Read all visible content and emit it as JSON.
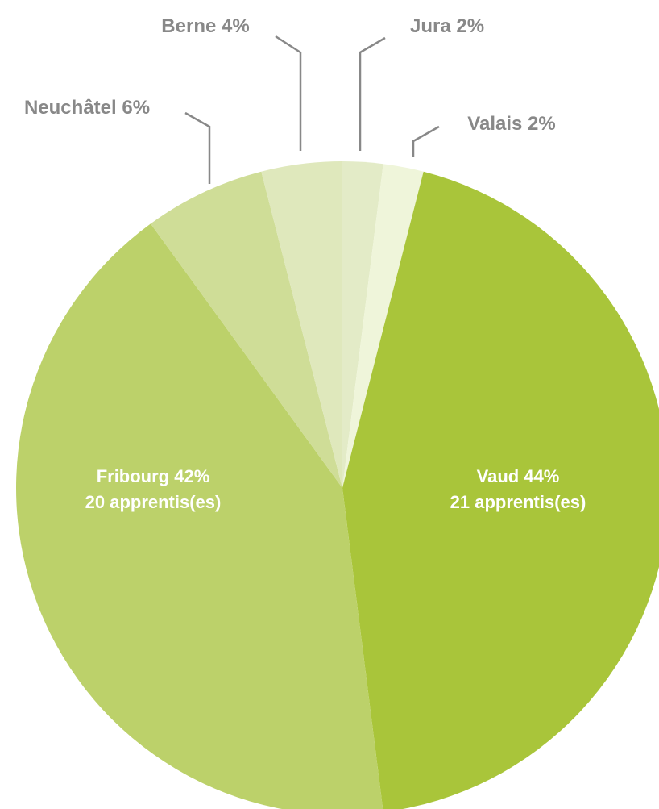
{
  "chart_data": {
    "type": "pie",
    "categories": [
      "Jura",
      "Valais",
      "Vaud",
      "Fribourg",
      "Neuchâtel",
      "Berne"
    ],
    "values": [
      2,
      2,
      44,
      42,
      6,
      4
    ],
    "value_labels": [
      "2%",
      "2%",
      "44%",
      "42%",
      "6%",
      "4%"
    ],
    "count_labels": [
      null,
      null,
      "21 apprentis(es)",
      "20 apprentis(es)",
      null,
      null
    ],
    "colors": [
      "#e3ebc7",
      "#eff5da",
      "#a9c53a",
      "#bcd16a",
      "#cfdd97",
      "#dfe8bc"
    ]
  }
}
